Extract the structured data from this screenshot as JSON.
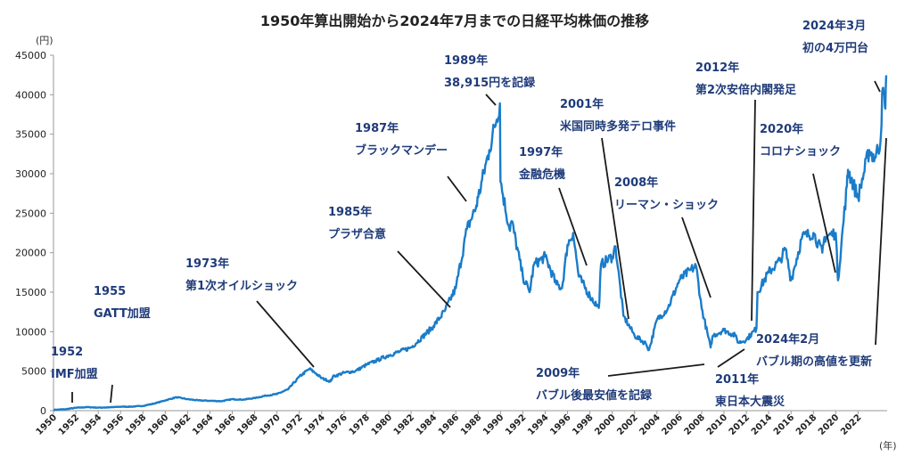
{
  "chart_data": {
    "type": "line",
    "title": "1950年算出開始から2024年7月までの日経平均株価の推移",
    "ylabel": "(円)",
    "xlabel": "(年)",
    "ylim": [
      0,
      45000
    ],
    "xlim": [
      1950,
      2024.6
    ],
    "yticks": [
      "0",
      "5000",
      "10000",
      "15000",
      "20000",
      "25000",
      "30000",
      "35000",
      "40000",
      "45000"
    ],
    "ytick_values": [
      0,
      5000,
      10000,
      15000,
      20000,
      25000,
      30000,
      35000,
      40000,
      45000
    ],
    "xticks": [
      "1950",
      "1952",
      "1954",
      "1956",
      "1958",
      "1960",
      "1962",
      "1964",
      "1966",
      "1968",
      "1970",
      "1972",
      "1974",
      "1976",
      "1978",
      "1980",
      "1982",
      "1984",
      "1986",
      "1988",
      "1990",
      "1992",
      "1994",
      "1996",
      "1998",
      "2000",
      "2002",
      "2004",
      "2006",
      "2008",
      "2010",
      "2012",
      "2014",
      "2016",
      "2018",
      "2020",
      "2022"
    ],
    "grid": false,
    "line_color": "#1a7cc9",
    "annotation_color": "#1f3b7a",
    "series": [
      {
        "x": [
          1950,
          1951,
          1952,
          1953,
          1954,
          1955,
          1956,
          1957,
          1958,
          1959,
          1960,
          1961,
          1962,
          1963,
          1964,
          1965,
          1966,
          1967,
          1968,
          1969,
          1970,
          1971,
          1972,
          1972.9,
          1973.5,
          1974,
          1974.8,
          1975,
          1976,
          1977,
          1978,
          1979,
          1980,
          1981,
          1982,
          1983,
          1984,
          1985,
          1986,
          1987,
          1987.8,
          1988,
          1989,
          1989.95,
          1990,
          1990.8,
          1991,
          1992,
          1992.6,
          1993,
          1994,
          1995,
          1995.5,
          1996,
          1996.5,
          1997,
          1998,
          1998.8,
          1999,
          2000,
          2000.3,
          2001,
          2002,
          2003,
          2003.3,
          2004,
          2005,
          2006,
          2007,
          2007.5,
          2008,
          2008.8,
          2009,
          2010,
          2011,
          2011.3,
          2012,
          2012.9,
          2013,
          2014,
          2015,
          2015.5,
          2016,
          2017,
          2018,
          2018.8,
          2019,
          2020,
          2020.2,
          2021,
          2021.1,
          2022,
          2023,
          2023.5,
          2024,
          2024.2,
          2024.4,
          2024.55
        ],
        "values": [
          100,
          170,
          360,
          450,
          380,
          420,
          500,
          510,
          600,
          900,
          1300,
          1700,
          1450,
          1300,
          1250,
          1200,
          1450,
          1400,
          1600,
          1900,
          2100,
          2700,
          4300,
          5300,
          4700,
          4100,
          3700,
          4300,
          4800,
          5000,
          5800,
          6400,
          7000,
          7500,
          8000,
          9300,
          10700,
          12600,
          15500,
          23000,
          25700,
          27000,
          33000,
          38915,
          29000,
          23000,
          24000,
          17000,
          15000,
          18500,
          19500,
          16000,
          15500,
          21000,
          22500,
          17000,
          14500,
          13000,
          18500,
          19500,
          20800,
          12000,
          9500,
          8500,
          7700,
          11500,
          13000,
          16500,
          17800,
          18300,
          13000,
          8000,
          9500,
          10200,
          9500,
          8600,
          9000,
          10400,
          15000,
          17500,
          19000,
          20500,
          16500,
          22000,
          22500,
          20000,
          22000,
          22500,
          16500,
          28500,
          30500,
          27000,
          33000,
          32000,
          34000,
          40800,
          38500,
          42200
        ]
      }
    ],
    "annotations": [
      {
        "lines": [
          "1952",
          "IMF加盟"
        ]
      },
      {
        "lines": [
          "1955",
          "GATT加盟"
        ]
      },
      {
        "lines": [
          "1973年",
          "第1次オイルショック"
        ]
      },
      {
        "lines": [
          "1985年",
          "プラザ合意"
        ]
      },
      {
        "lines": [
          "1987年",
          "ブラックマンデー"
        ]
      },
      {
        "lines": [
          "1989年",
          "38,915円を記録"
        ]
      },
      {
        "lines": [
          "1997年",
          "金融危機"
        ]
      },
      {
        "lines": [
          "2001年",
          "米国同時多発テロ事件"
        ]
      },
      {
        "lines": [
          "2008年",
          "リーマン・ショック"
        ]
      },
      {
        "lines": [
          "2009年",
          "バブル後最安値を記録"
        ]
      },
      {
        "lines": [
          "2011年",
          "東日本大震災"
        ]
      },
      {
        "lines": [
          "2012年",
          "第2次安倍内閣発足"
        ]
      },
      {
        "lines": [
          "2020年",
          "コロナショック"
        ]
      },
      {
        "lines": [
          "2024年2月",
          "バブル期の高値を更新"
        ]
      },
      {
        "lines": [
          "2024年3月",
          "初の4万円台"
        ]
      }
    ]
  }
}
